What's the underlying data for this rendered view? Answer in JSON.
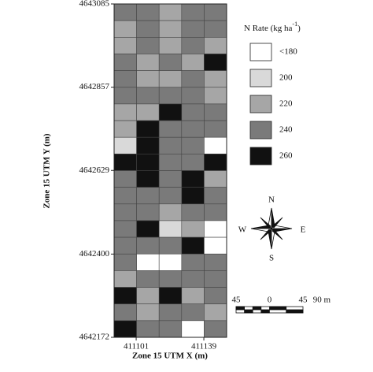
{
  "map": {
    "y_axis_label": "Zone 15 UTM Y (m)",
    "x_axis_label": "Zone 15 UTM X (m)",
    "ylim": [
      4642172,
      4643085
    ],
    "yticks": [
      4643085,
      4642857,
      4642629,
      4642400,
      4642172
    ],
    "xlim": [
      411088.6,
      411151.8
    ],
    "xticks": [
      411101,
      411139
    ],
    "legend": {
      "title": "N Rate (kg ha",
      "title_sup": "-1",
      "title_end": ")",
      "classes": [
        {
          "label": "<180",
          "color": "#ffffff"
        },
        {
          "label": "200",
          "color": "#d9d9d9"
        },
        {
          "label": "220",
          "color": "#a6a6a6"
        },
        {
          "label": "240",
          "color": "#7a7a7a"
        },
        {
          "label": "260",
          "color": "#111111"
        }
      ]
    },
    "rows": [
      [
        "240",
        "240",
        "220",
        "240",
        "240"
      ],
      [
        "220",
        "240",
        "220",
        "240",
        "240"
      ],
      [
        "220",
        "240",
        "220",
        "240",
        "220"
      ],
      [
        "240",
        "220",
        "240",
        "220",
        "260"
      ],
      [
        "240",
        "220",
        "220",
        "240",
        "220"
      ],
      [
        "240",
        "240",
        "240",
        "240",
        "220"
      ],
      [
        "220",
        "220",
        "260",
        "240",
        "240"
      ],
      [
        "220",
        "260",
        "240",
        "240",
        "240"
      ],
      [
        "200",
        "260",
        "240",
        "240",
        "<180"
      ],
      [
        "260",
        "260",
        "240",
        "240",
        "260"
      ],
      [
        "240",
        "260",
        "240",
        "260",
        "220"
      ],
      [
        "240",
        "240",
        "240",
        "260",
        "240"
      ],
      [
        "240",
        "240",
        "220",
        "240",
        "240"
      ],
      [
        "240",
        "260",
        "200",
        "220",
        "<180"
      ],
      [
        "240",
        "240",
        "240",
        "260",
        "<180"
      ],
      [
        "240",
        "<180",
        "<180",
        "240",
        "240"
      ],
      [
        "220",
        "240",
        "240",
        "240",
        "240"
      ],
      [
        "260",
        "220",
        "260",
        "220",
        "240"
      ],
      [
        "240",
        "220",
        "240",
        "240",
        "220"
      ],
      [
        "260",
        "240",
        "240",
        "<180",
        "240"
      ]
    ],
    "compass": {
      "n": "N",
      "s": "S",
      "e": "E",
      "w": "W"
    },
    "scale_bar": {
      "labels": [
        "45",
        "0",
        "45",
        "90 m"
      ]
    }
  }
}
